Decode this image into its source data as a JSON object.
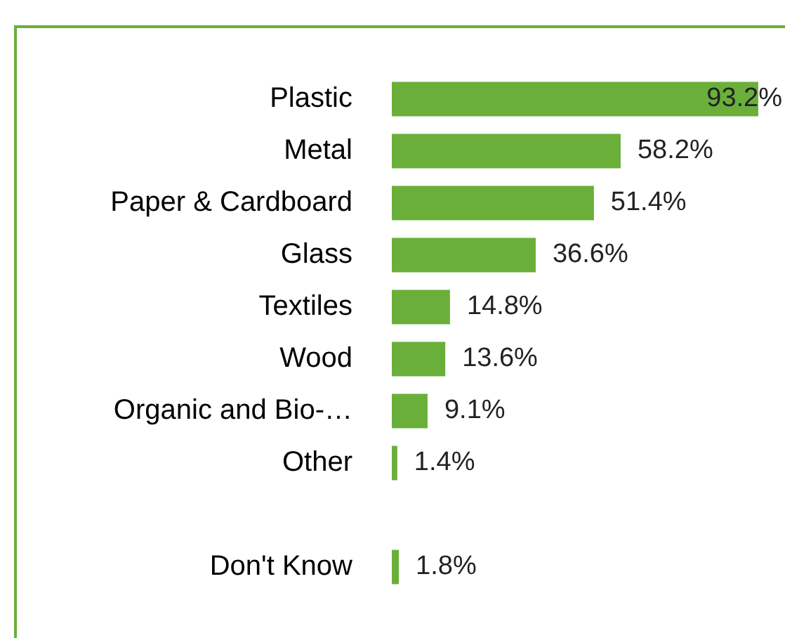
{
  "chart_data": {
    "type": "bar",
    "orientation": "horizontal",
    "categories": [
      "Plastic",
      "Metal",
      "Paper & Cardboard",
      "Glass",
      "Textiles",
      "Wood",
      "Organic and Bio-…",
      "Other",
      null,
      "Don't Know"
    ],
    "values": [
      93.2,
      58.2,
      51.4,
      36.6,
      14.8,
      13.6,
      9.1,
      1.4,
      null,
      1.8
    ],
    "value_labels": [
      "93.2%",
      "58.2%",
      "51.4%",
      "36.6%",
      "14.8%",
      "13.6%",
      "9.1%",
      "1.4%",
      null,
      "1.8%"
    ],
    "color": "#6aaf3a",
    "grid": false,
    "legend": false
  }
}
